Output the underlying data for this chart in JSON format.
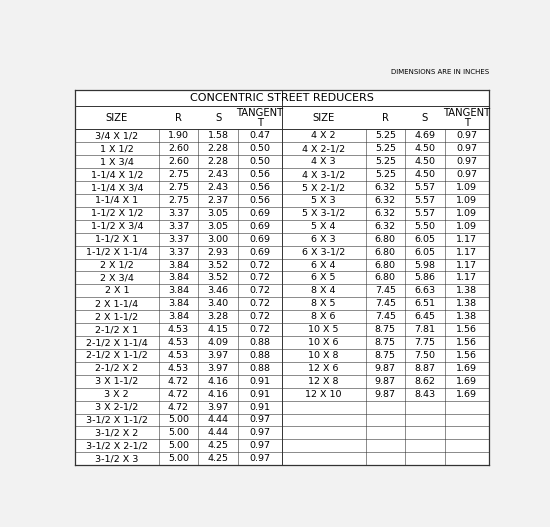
{
  "title": "CONCENTRIC STREET REDUCERS",
  "note": "DIMENSIONS ARE IN INCHES",
  "headers_left": [
    "SIZE",
    "R",
    "S",
    "TANGENT\nT"
  ],
  "headers_right": [
    "SIZE",
    "R",
    "S",
    "TANGENT\nT"
  ],
  "left_data": [
    [
      "3/4 X 1/2",
      "1.90",
      "1.58",
      "0.47"
    ],
    [
      "1 X 1/2",
      "2.60",
      "2.28",
      "0.50"
    ],
    [
      "1 X 3/4",
      "2.60",
      "2.28",
      "0.50"
    ],
    [
      "1-1/4 X 1/2",
      "2.75",
      "2.43",
      "0.56"
    ],
    [
      "1-1/4 X 3/4",
      "2.75",
      "2.43",
      "0.56"
    ],
    [
      "1-1/4 X 1",
      "2.75",
      "2.37",
      "0.56"
    ],
    [
      "1-1/2 X 1/2",
      "3.37",
      "3.05",
      "0.69"
    ],
    [
      "1-1/2 X 3/4",
      "3.37",
      "3.05",
      "0.69"
    ],
    [
      "1-1/2 X 1",
      "3.37",
      "3.00",
      "0.69"
    ],
    [
      "1-1/2 X 1-1/4",
      "3.37",
      "2.93",
      "0.69"
    ],
    [
      "2 X 1/2",
      "3.84",
      "3.52",
      "0.72"
    ],
    [
      "2 X 3/4",
      "3.84",
      "3.52",
      "0.72"
    ],
    [
      "2 X 1",
      "3.84",
      "3.46",
      "0.72"
    ],
    [
      "2 X 1-1/4",
      "3.84",
      "3.40",
      "0.72"
    ],
    [
      "2 X 1-1/2",
      "3.84",
      "3.28",
      "0.72"
    ],
    [
      "2-1/2 X 1",
      "4.53",
      "4.15",
      "0.72"
    ],
    [
      "2-1/2 X 1-1/4",
      "4.53",
      "4.09",
      "0.88"
    ],
    [
      "2-1/2 X 1-1/2",
      "4.53",
      "3.97",
      "0.88"
    ],
    [
      "2-1/2 X 2",
      "4.53",
      "3.97",
      "0.88"
    ],
    [
      "3 X 1-1/2",
      "4.72",
      "4.16",
      "0.91"
    ],
    [
      "3 X 2",
      "4.72",
      "4.16",
      "0.91"
    ],
    [
      "3 X 2-1/2",
      "4.72",
      "3.97",
      "0.91"
    ],
    [
      "3-1/2 X 1-1/2",
      "5.00",
      "4.44",
      "0.97"
    ],
    [
      "3-1/2 X 2",
      "5.00",
      "4.44",
      "0.97"
    ],
    [
      "3-1/2 X 2-1/2",
      "5.00",
      "4.25",
      "0.97"
    ],
    [
      "3-1/2 X 3",
      "5.00",
      "4.25",
      "0.97"
    ]
  ],
  "right_data": [
    [
      "4 X 2",
      "5.25",
      "4.69",
      "0.97"
    ],
    [
      "4 X 2-1/2",
      "5.25",
      "4.50",
      "0.97"
    ],
    [
      "4 X 3",
      "5.25",
      "4.50",
      "0.97"
    ],
    [
      "4 X 3-1/2",
      "5.25",
      "4.50",
      "0.97"
    ],
    [
      "5 X 2-1/2",
      "6.32",
      "5.57",
      "1.09"
    ],
    [
      "5 X 3",
      "6.32",
      "5.57",
      "1.09"
    ],
    [
      "5 X 3-1/2",
      "6.32",
      "5.57",
      "1.09"
    ],
    [
      "5 X 4",
      "6.32",
      "5.50",
      "1.09"
    ],
    [
      "6 X 3",
      "6.80",
      "6.05",
      "1.17"
    ],
    [
      "6 X 3-1/2",
      "6.80",
      "6.05",
      "1.17"
    ],
    [
      "6 X 4",
      "6.80",
      "5.98",
      "1.17"
    ],
    [
      "6 X 5",
      "6.80",
      "5.86",
      "1.17"
    ],
    [
      "8 X 4",
      "7.45",
      "6.63",
      "1.38"
    ],
    [
      "8 X 5",
      "7.45",
      "6.51",
      "1.38"
    ],
    [
      "8 X 6",
      "7.45",
      "6.45",
      "1.38"
    ],
    [
      "10 X 5",
      "8.75",
      "7.81",
      "1.56"
    ],
    [
      "10 X 6",
      "8.75",
      "7.75",
      "1.56"
    ],
    [
      "10 X 8",
      "8.75",
      "7.50",
      "1.56"
    ],
    [
      "12 X 6",
      "9.87",
      "8.87",
      "1.69"
    ],
    [
      "12 X 8",
      "9.87",
      "8.62",
      "1.69"
    ],
    [
      "12 X 10",
      "9.87",
      "8.43",
      "1.69"
    ],
    [
      "",
      "",
      "",
      ""
    ],
    [
      "",
      "",
      "",
      ""
    ],
    [
      "",
      "",
      "",
      ""
    ],
    [
      "",
      "",
      "",
      ""
    ],
    [
      "",
      "",
      "",
      ""
    ]
  ],
  "col_widths_norm": [
    1.9,
    0.9,
    0.9,
    1.0,
    1.9,
    0.9,
    0.9,
    1.0
  ],
  "bg_color": "#f2f2f2",
  "table_bg": "#ffffff",
  "line_color": "#333333",
  "font_size": 6.8,
  "header_font_size": 7.2,
  "title_font_size": 8.0,
  "note_font_size": 5.0
}
